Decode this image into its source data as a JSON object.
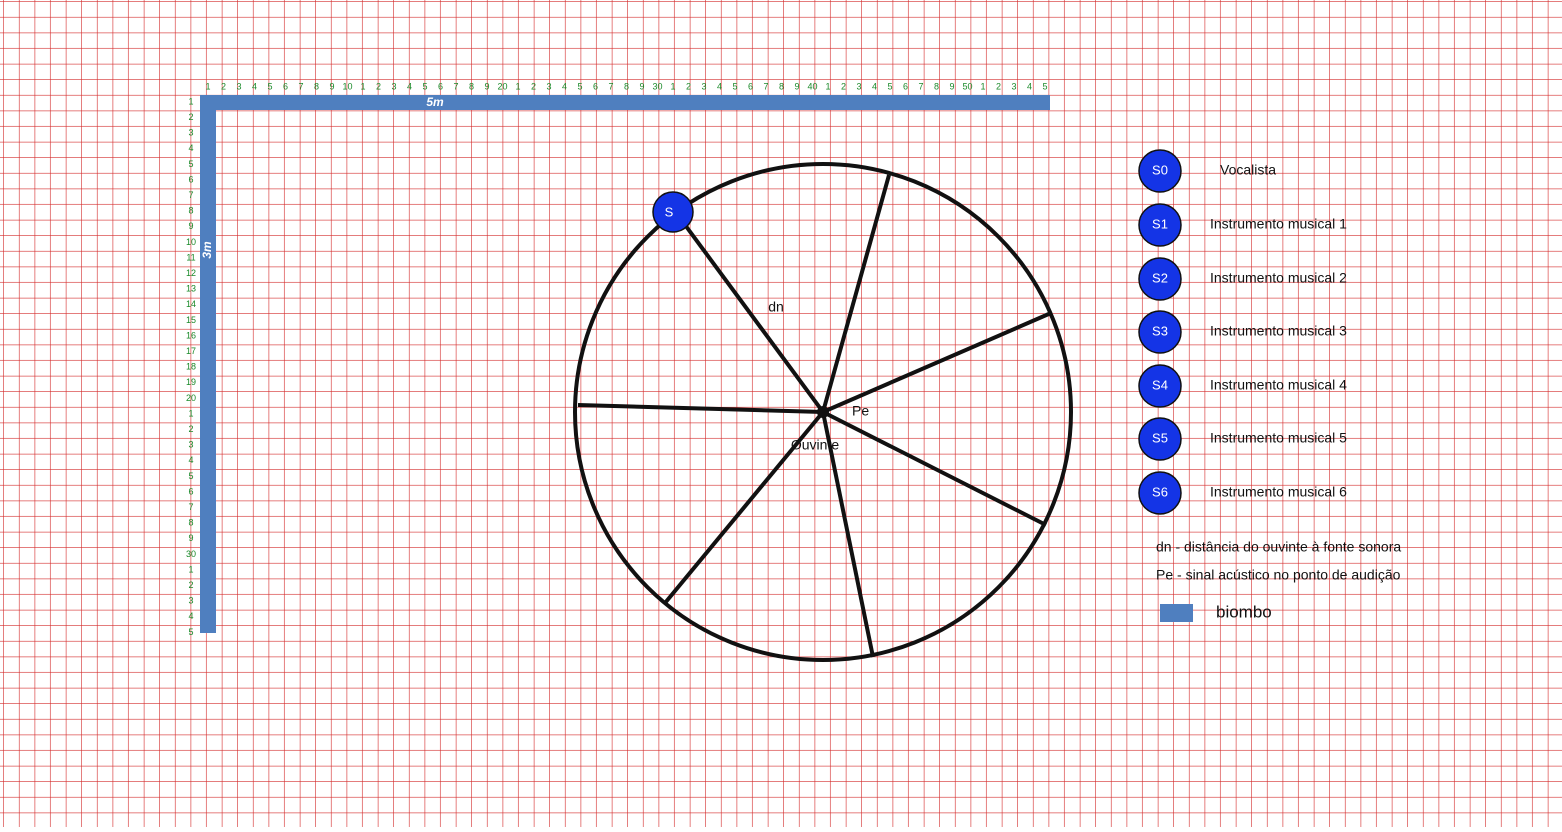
{
  "ruler": {
    "top": [
      1,
      2,
      3,
      4,
      5,
      6,
      7,
      8,
      9,
      10,
      1,
      2,
      3,
      4,
      5,
      6,
      7,
      8,
      9,
      20,
      1,
      2,
      3,
      4,
      5,
      6,
      7,
      8,
      9,
      30,
      1,
      2,
      3,
      4,
      5,
      6,
      7,
      8,
      9,
      40,
      1,
      2,
      3,
      4,
      5,
      6,
      7,
      8,
      9,
      50,
      1,
      2,
      3,
      4,
      5
    ],
    "left": [
      1,
      2,
      3,
      4,
      5,
      6,
      7,
      8,
      9,
      10,
      11,
      12,
      13,
      14,
      15,
      16,
      17,
      18,
      19,
      20,
      1,
      2,
      3,
      4,
      5,
      6,
      7,
      8,
      9,
      30,
      1,
      2,
      3,
      4,
      5
    ]
  },
  "screens": {
    "top_label": "5m",
    "left_label": "3m"
  },
  "diagram": {
    "source_label": "S",
    "distance_label": "dn",
    "signal_label": "Pe",
    "listener_label": "Ouvinte"
  },
  "legend": {
    "sources": [
      {
        "id": "S0",
        "description": "Vocalista"
      },
      {
        "id": "S1",
        "description": "Instrumento musical 1"
      },
      {
        "id": "S2",
        "description": "Instrumento musical 2"
      },
      {
        "id": "S3",
        "description": "Instrumento musical 3"
      },
      {
        "id": "S4",
        "description": "Instrumento musical 4"
      },
      {
        "id": "S5",
        "description": "Instrumento musical 5"
      },
      {
        "id": "S6",
        "description": "Instrumento musical 6"
      }
    ],
    "notes": [
      "dn - distância do ouvinte à fonte sonora",
      "Pe - sinal acústico no ponto de audição"
    ],
    "screen_label": "biombo"
  }
}
